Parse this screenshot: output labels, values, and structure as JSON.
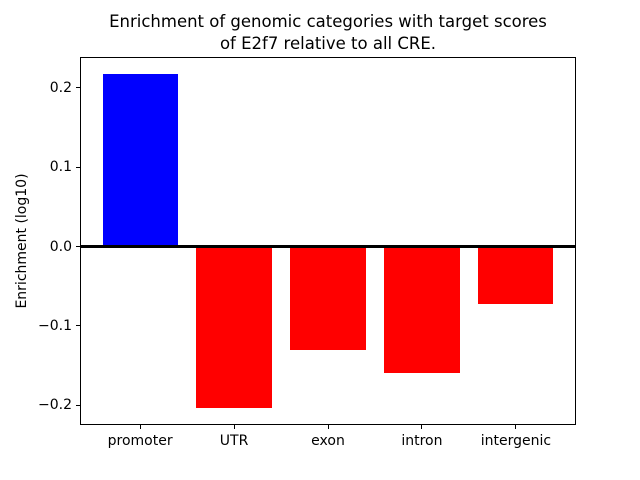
{
  "chart_data": {
    "type": "bar",
    "title": "Enrichment of genomic categories with target scores\nof E2f7 relative to all CRE.",
    "xlabel": "",
    "ylabel": "Enrichment (log10)",
    "categories": [
      "promoter",
      "UTR",
      "exon",
      "intron",
      "intergenic"
    ],
    "values": [
      0.218,
      -0.204,
      -0.131,
      -0.16,
      -0.072
    ],
    "bar_colors": [
      "#0000ff",
      "#ff0000",
      "#ff0000",
      "#ff0000",
      "#ff0000"
    ],
    "bar_width": 0.8,
    "xlim": [
      -0.64,
      4.64
    ],
    "ylim": [
      -0.225,
      0.239
    ],
    "yticks": {
      "values": [
        0.2,
        0.1,
        0.0,
        -0.1,
        -0.2
      ],
      "labels": [
        "0.2",
        "0.1",
        "0.0",
        "−0.1",
        "−0.2"
      ]
    },
    "zero_line": true,
    "zero_line_color": "#000000",
    "grid": false,
    "legend": null,
    "background": "#ffffff",
    "spine_color": "#000000"
  }
}
